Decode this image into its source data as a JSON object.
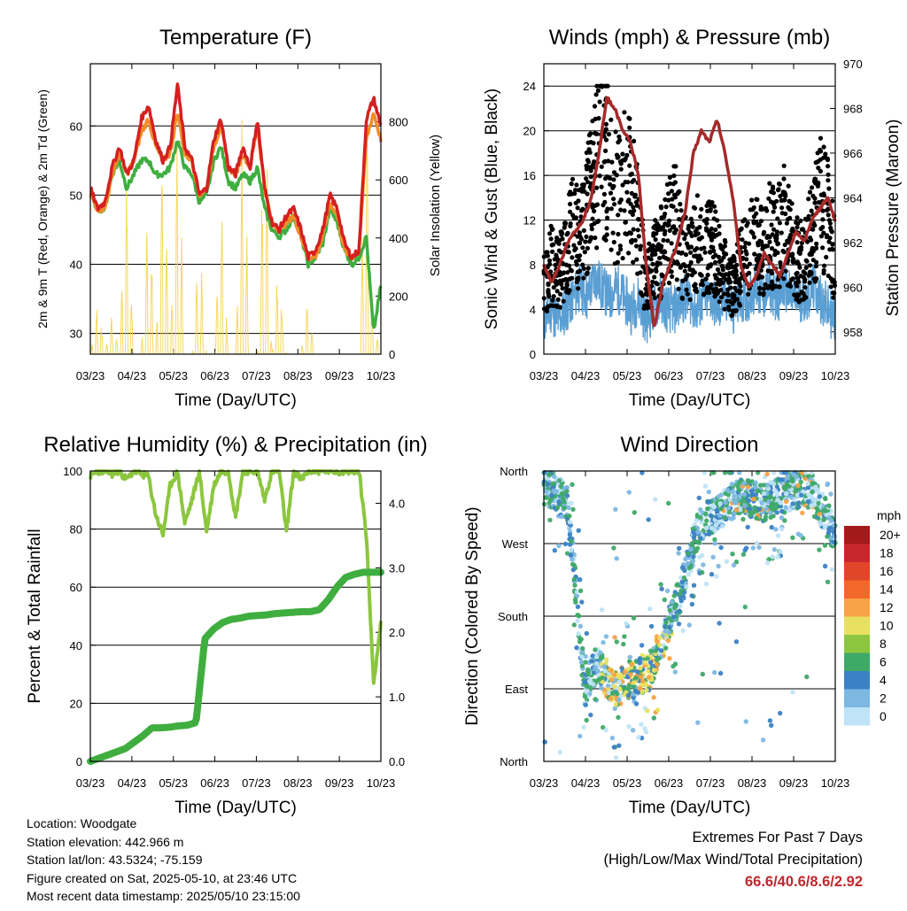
{
  "chart_data": [
    {
      "type": "line",
      "title": "Temperature (F)",
      "xlabel": "Time (Day/UTC)",
      "ylabel": "2m & 9m T (Red, Orange) & 2m Td (Green)",
      "ylabel_right": "Solar Insolation (Yellow)",
      "x_ticks": [
        "03/23",
        "04/23",
        "05/23",
        "06/23",
        "07/23",
        "08/23",
        "09/23",
        "10/23"
      ],
      "ylim": [
        27,
        69
      ],
      "y_ticks": [
        30,
        40,
        50,
        60
      ],
      "y2lim": [
        0,
        1000
      ],
      "y2_ticks": [
        0,
        200,
        400,
        600,
        800
      ],
      "grid": true,
      "series": [
        {
          "color": "#d42020",
          "values": [
            51,
            48,
            49,
            54,
            57,
            53,
            55,
            61,
            63,
            58,
            55,
            57,
            66,
            57,
            55,
            50,
            51,
            58,
            61,
            54,
            53,
            57,
            54,
            61,
            51,
            46,
            45,
            47,
            48,
            45,
            41,
            42,
            45,
            50,
            48,
            43,
            41,
            42,
            61,
            64,
            60
          ]
        },
        {
          "color": "#f28c28",
          "values": [
            50,
            48,
            48,
            53,
            56,
            53,
            55,
            59,
            61,
            57,
            55,
            56,
            62,
            56,
            55,
            50,
            51,
            57,
            60,
            54,
            53,
            56,
            54,
            60,
            51,
            46,
            45,
            46,
            47,
            44,
            41,
            41,
            44,
            49,
            47,
            42,
            41,
            42,
            58,
            62,
            58
          ]
        },
        {
          "color": "#3fae3f",
          "values": [
            50,
            48,
            48,
            53,
            55,
            51,
            53,
            55,
            55,
            53,
            53,
            54,
            58,
            54,
            53,
            49,
            50,
            55,
            57,
            52,
            51,
            53,
            52,
            54,
            48,
            45,
            44,
            45,
            47,
            44,
            40,
            41,
            43,
            48,
            46,
            42,
            40,
            41,
            44,
            30,
            37
          ]
        },
        {
          "color": "#f5d34c",
          "axis": "right",
          "values": [
            0,
            200,
            0,
            150,
            0,
            620,
            0,
            0,
            650,
            0,
            800,
            0,
            900,
            0,
            0,
            400,
            0,
            0,
            600,
            0,
            0,
            880,
            0,
            0,
            960,
            0,
            350,
            0,
            0,
            0,
            200,
            0,
            0,
            0,
            0,
            0,
            0,
            0,
            980,
            0,
            100
          ]
        }
      ]
    },
    {
      "type": "line",
      "title": "Winds (mph) & Pressure (mb)",
      "xlabel": "Time (Day/UTC)",
      "ylabel": "Sonic Wind & Gust (Blue, Black)",
      "ylabel_right": "Station Pressure (Maroon)",
      "x_ticks": [
        "03/23",
        "04/23",
        "05/23",
        "06/23",
        "07/23",
        "08/23",
        "09/23",
        "10/23"
      ],
      "ylim": [
        0,
        26
      ],
      "y_ticks": [
        0,
        4,
        8,
        12,
        16,
        20,
        24
      ],
      "y2lim": [
        957,
        970
      ],
      "y2_ticks": [
        958,
        960,
        962,
        964,
        966,
        968,
        970
      ],
      "grid": true,
      "series": [
        {
          "color": "#5a9fd4",
          "values": [
            3,
            4,
            3,
            4,
            5,
            6,
            5,
            7,
            6,
            5,
            6,
            5,
            4,
            5,
            3,
            4,
            5,
            4,
            4,
            5,
            5,
            4,
            5,
            5,
            4,
            5,
            4,
            5,
            5,
            6,
            5,
            6,
            5,
            6,
            5,
            5,
            5,
            6,
            5,
            4,
            3
          ]
        },
        {
          "color": "#000000",
          "values": [
            6,
            8,
            7,
            9,
            11,
            10,
            13,
            16,
            19,
            17,
            14,
            15,
            16,
            11,
            6,
            8,
            9,
            11,
            12,
            9,
            8,
            10,
            9,
            10,
            8,
            7,
            6,
            8,
            9,
            10,
            9,
            11,
            10,
            12,
            10,
            8,
            9,
            11,
            14,
            12,
            8
          ]
        },
        {
          "color": "#a52a2a",
          "axis": "right",
          "values": [
            961,
            960.2,
            961,
            962,
            962.5,
            963,
            964,
            966,
            968.5,
            968,
            967,
            966.5,
            965,
            961,
            958.2,
            960,
            961,
            962,
            963.5,
            966,
            967,
            966.5,
            967.5,
            966,
            964,
            961,
            960,
            960.5,
            961.5,
            961,
            960.5,
            961.5,
            962.5,
            962,
            963,
            963.5,
            964,
            963
          ]
        }
      ]
    },
    {
      "type": "line",
      "title": "Relative Humidity (%) & Precipitation (in)",
      "xlabel": "Time (Day/UTC)",
      "ylabel": "Percent & Total Rainfall",
      "x_ticks": [
        "03/23",
        "04/23",
        "05/23",
        "06/23",
        "07/23",
        "08/23",
        "09/23",
        "10/23"
      ],
      "ylim": [
        0,
        100
      ],
      "y_ticks": [
        0,
        20,
        40,
        60,
        80,
        100
      ],
      "y2lim": [
        0,
        4.5
      ],
      "y2_ticks": [
        "0.0",
        "1.0",
        "2.0",
        "3.0",
        "4.0"
      ],
      "grid": true,
      "series": [
        {
          "color": "#8cc63f",
          "values": [
            98,
            100,
            100,
            99,
            100,
            97,
            100,
            99,
            98,
            85,
            78,
            95,
            100,
            82,
            90,
            100,
            79,
            95,
            100,
            100,
            84,
            100,
            100,
            100,
            90,
            100,
            100,
            79,
            100,
            97,
            100,
            100,
            100,
            100,
            100,
            100,
            100,
            100,
            78,
            27,
            48
          ]
        },
        {
          "color": "#3fae3f",
          "axis": "right",
          "values": [
            0,
            0.05,
            0.1,
            0.15,
            0.2,
            0.3,
            0.4,
            0.52,
            0.52,
            0.53,
            0.55,
            0.56,
            0.6,
            1.9,
            2.05,
            2.15,
            2.2,
            2.22,
            2.25,
            2.26,
            2.27,
            2.29,
            2.3,
            2.31,
            2.32,
            2.32,
            2.35,
            2.5,
            2.7,
            2.85,
            2.9,
            2.93,
            2.93,
            2.93
          ]
        }
      ]
    },
    {
      "type": "scatter",
      "title": "Wind Direction",
      "xlabel": "Time (Day/UTC)",
      "ylabel": "Direction (Colored By Speed)",
      "x_ticks": [
        "03/23",
        "04/23",
        "05/23",
        "06/23",
        "07/23",
        "08/23",
        "09/23",
        "10/23"
      ],
      "y_ticks": [
        "North",
        "West",
        "South",
        "East",
        "North"
      ],
      "grid": true,
      "legend": {
        "title": "mph",
        "labels": [
          "20+",
          "18",
          "16",
          "14",
          "12",
          "10",
          "8",
          "6",
          "4",
          "2",
          "0"
        ],
        "colors": [
          "#a41a1a",
          "#c8282d",
          "#e0462a",
          "#f2682a",
          "#f7a246",
          "#e8e060",
          "#8cc63f",
          "#3fa968",
          "#3b82c4",
          "#7db8e3",
          "#bfe3f7"
        ]
      },
      "direction_track": [
        [
          0,
          340
        ],
        [
          0.04,
          335
        ],
        [
          0.08,
          320
        ],
        [
          0.1,
          250
        ],
        [
          0.14,
          90
        ],
        [
          0.18,
          120
        ],
        [
          0.24,
          90
        ],
        [
          0.3,
          100
        ],
        [
          0.36,
          110
        ],
        [
          0.42,
          160
        ],
        [
          0.47,
          210
        ],
        [
          0.53,
          290
        ],
        [
          0.6,
          310
        ],
        [
          0.68,
          330
        ],
        [
          0.75,
          320
        ],
        [
          0.82,
          330
        ],
        [
          0.9,
          340
        ],
        [
          0.95,
          315
        ],
        [
          1.0,
          280
        ]
      ]
    }
  ],
  "station_info": {
    "location": "Location: Woodgate",
    "elevation": "Station elevation: 442.966 m",
    "latlon": "Station lat/lon: 43.5324; -75.159",
    "created": "Figure created on Sat, 2025-05-10, at 23:46 UTC",
    "recent": "Most recent data timestamp: 2025/05/10 23:15:00"
  },
  "extremes": {
    "line1": "Extremes For Past 7 Days",
    "line2": "(High/Low/Max Wind/Total Precipitation)",
    "values": "66.6/40.6/8.6/2.92"
  }
}
